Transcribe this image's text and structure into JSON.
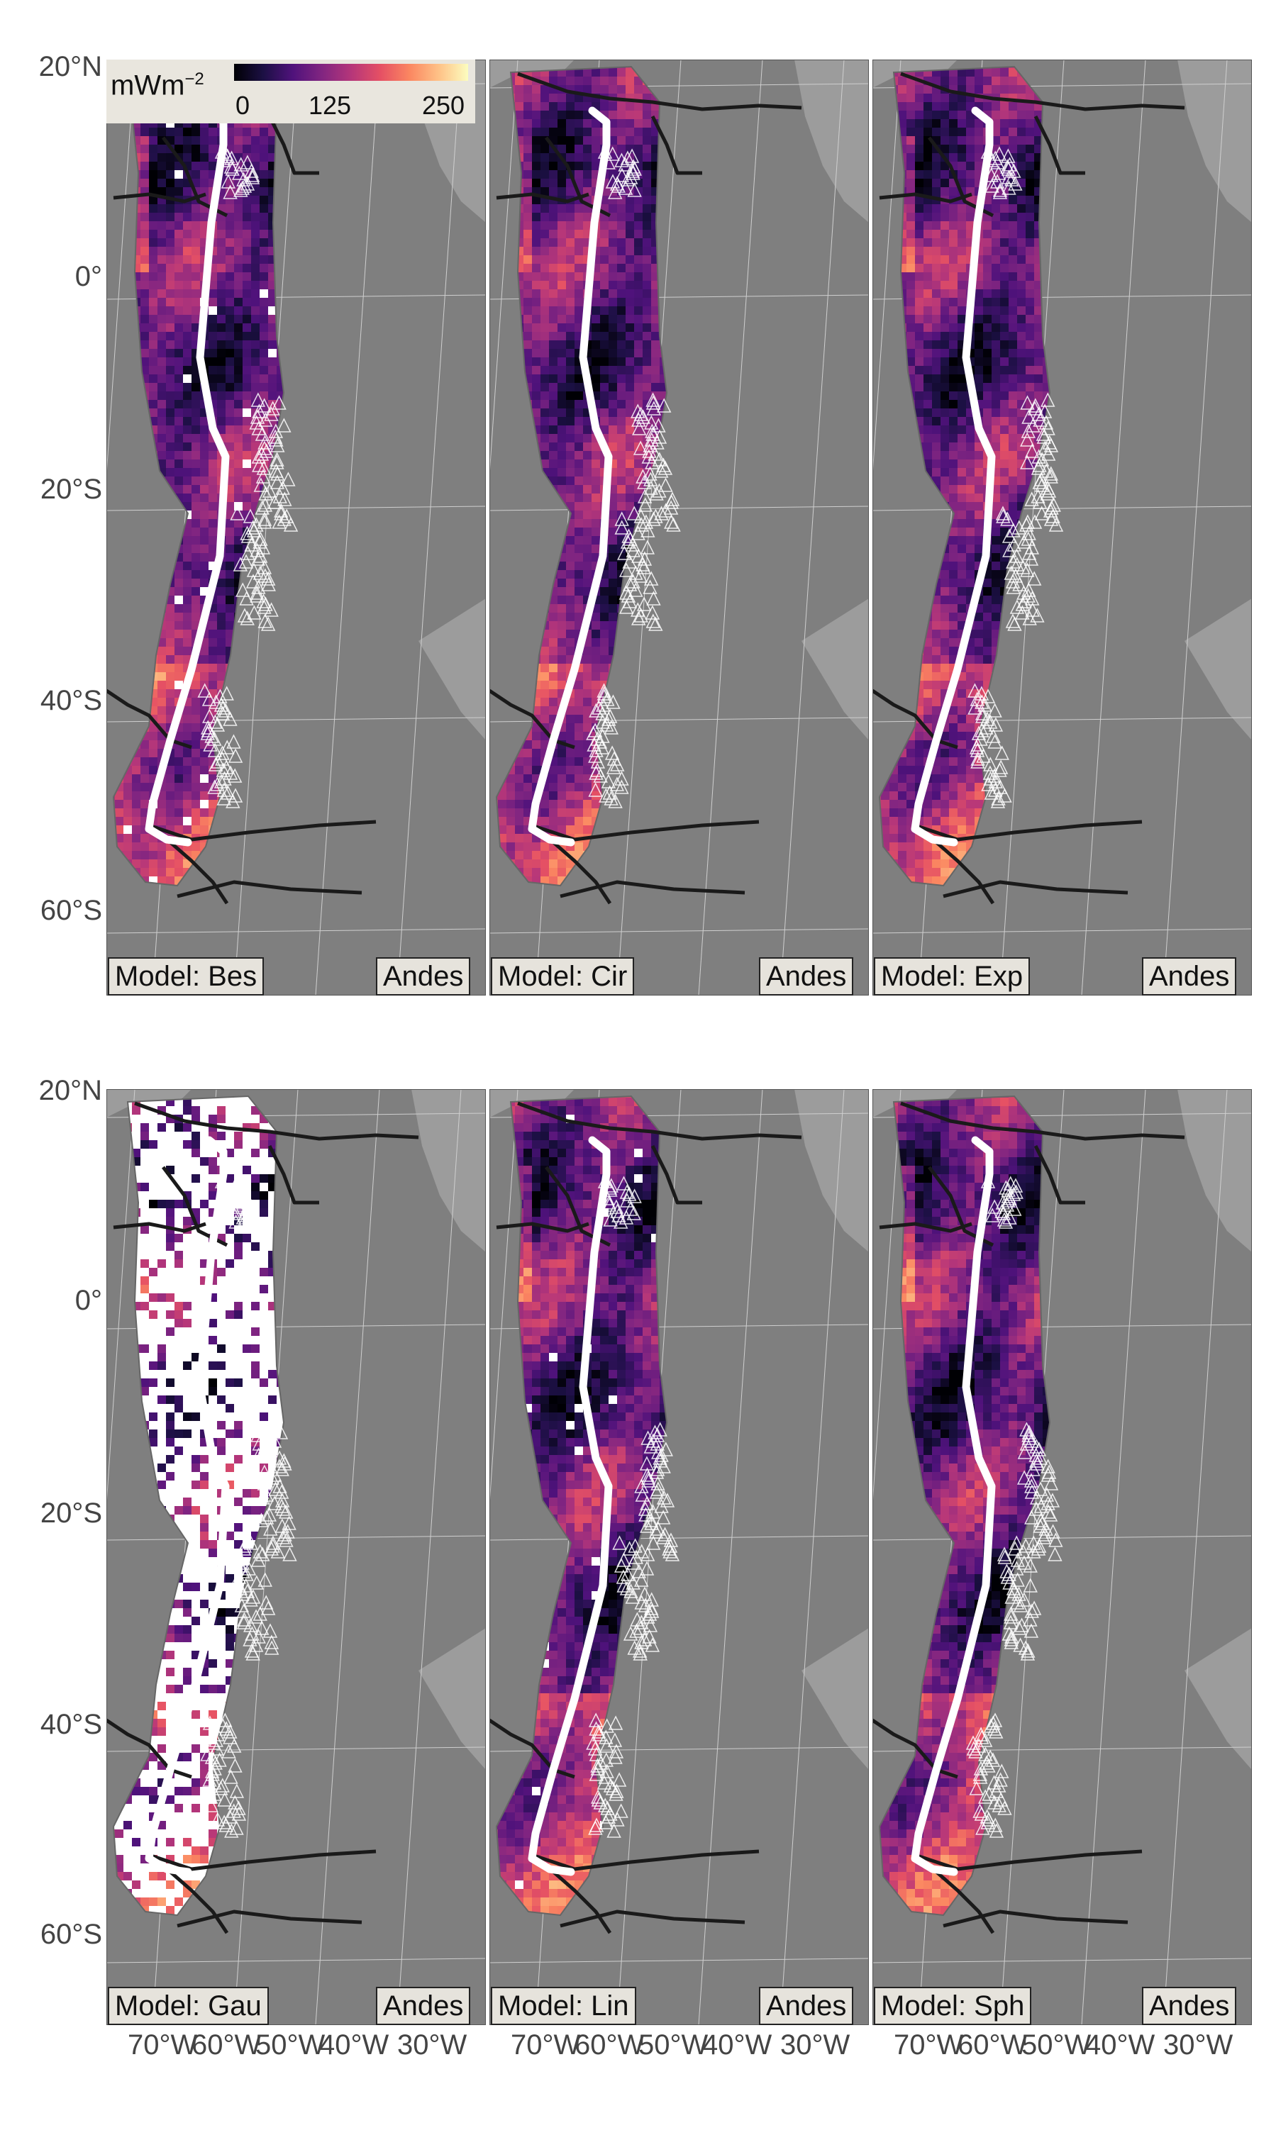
{
  "figure": {
    "region": "Andes",
    "colorbar": {
      "unit": "mWm",
      "exponent": "−2",
      "ticks": [
        "0",
        "125",
        "250"
      ],
      "colormap": [
        "#000004",
        "#1c1044",
        "#4f127b",
        "#812581",
        "#b5367a",
        "#e55064",
        "#fb8761",
        "#fec287",
        "#fcfdbf"
      ]
    },
    "lat_labels": [
      "20°N",
      "0°",
      "20°S",
      "40°S",
      "60°S"
    ],
    "lon_labels": [
      "70°W",
      "60°W",
      "50°W",
      "40°W",
      "30°W"
    ],
    "panels": [
      {
        "model_label": "Model: Bes",
        "region_label": "Andes",
        "style": "gaps"
      },
      {
        "model_label": "Model: Cir",
        "region_label": "Andes",
        "style": "full"
      },
      {
        "model_label": "Model: Exp",
        "region_label": "Andes",
        "style": "full"
      },
      {
        "model_label": "Model: Gau",
        "region_label": "Andes",
        "style": "mostly-missing"
      },
      {
        "model_label": "Model: Lin",
        "region_label": "Andes",
        "style": "gaps"
      },
      {
        "model_label": "Model: Sph",
        "region_label": "Andes",
        "style": "full"
      }
    ]
  },
  "colors": {
    "background": "#7f7f7f",
    "land": "#9c9c9c",
    "trench": "#ffffff",
    "plate_boundary": "#1a1a1a",
    "volcano": "#ffffff",
    "missing": "#ffffff"
  }
}
